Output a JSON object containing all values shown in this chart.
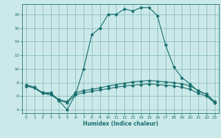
{
  "xlabel": "Humidex (Indice chaleur)",
  "xlim": [
    -0.5,
    23.5
  ],
  "ylim": [
    3.5,
    19.5
  ],
  "yticks": [
    4,
    6,
    8,
    10,
    12,
    14,
    16,
    18
  ],
  "xticks": [
    0,
    1,
    2,
    3,
    4,
    5,
    6,
    7,
    8,
    9,
    10,
    11,
    12,
    13,
    14,
    15,
    16,
    17,
    18,
    19,
    20,
    21,
    22,
    23
  ],
  "bg_color": "#cce9e9",
  "grid_color": "#7ab5b5",
  "line_color": "#1a7070",
  "line1_x": [
    0,
    1,
    2,
    3,
    4,
    5,
    6,
    7,
    8,
    9,
    10,
    11,
    12,
    13,
    14,
    15,
    16,
    17,
    18,
    19,
    20,
    21,
    22,
    23
  ],
  "line1_y": [
    7.7,
    7.3,
    6.5,
    6.5,
    5.3,
    4.0,
    6.2,
    10.0,
    15.0,
    16.0,
    18.0,
    18.0,
    18.8,
    18.5,
    19.0,
    19.0,
    17.8,
    13.5,
    10.3,
    8.7,
    7.8,
    6.7,
    6.3,
    5.0
  ],
  "line2_x": [
    0,
    1,
    2,
    3,
    4,
    5,
    6,
    7,
    8,
    9,
    10,
    11,
    12,
    13,
    14,
    15,
    16,
    17,
    18,
    19,
    20,
    21,
    22,
    23
  ],
  "line2_y": [
    7.5,
    7.2,
    6.5,
    6.3,
    5.5,
    5.2,
    6.5,
    6.8,
    7.0,
    7.2,
    7.5,
    7.7,
    7.9,
    8.1,
    8.2,
    8.3,
    8.2,
    8.1,
    8.0,
    7.8,
    7.5,
    6.8,
    6.3,
    5.2
  ],
  "line3_x": [
    0,
    1,
    2,
    3,
    4,
    5,
    6,
    7,
    8,
    9,
    10,
    11,
    12,
    13,
    14,
    15,
    16,
    17,
    18,
    19,
    20,
    21,
    22,
    23
  ],
  "line3_y": [
    7.5,
    7.2,
    6.4,
    6.2,
    5.4,
    5.0,
    6.2,
    6.5,
    6.7,
    6.9,
    7.1,
    7.3,
    7.5,
    7.6,
    7.7,
    7.8,
    7.7,
    7.6,
    7.5,
    7.3,
    7.0,
    6.4,
    6.0,
    5.0
  ]
}
